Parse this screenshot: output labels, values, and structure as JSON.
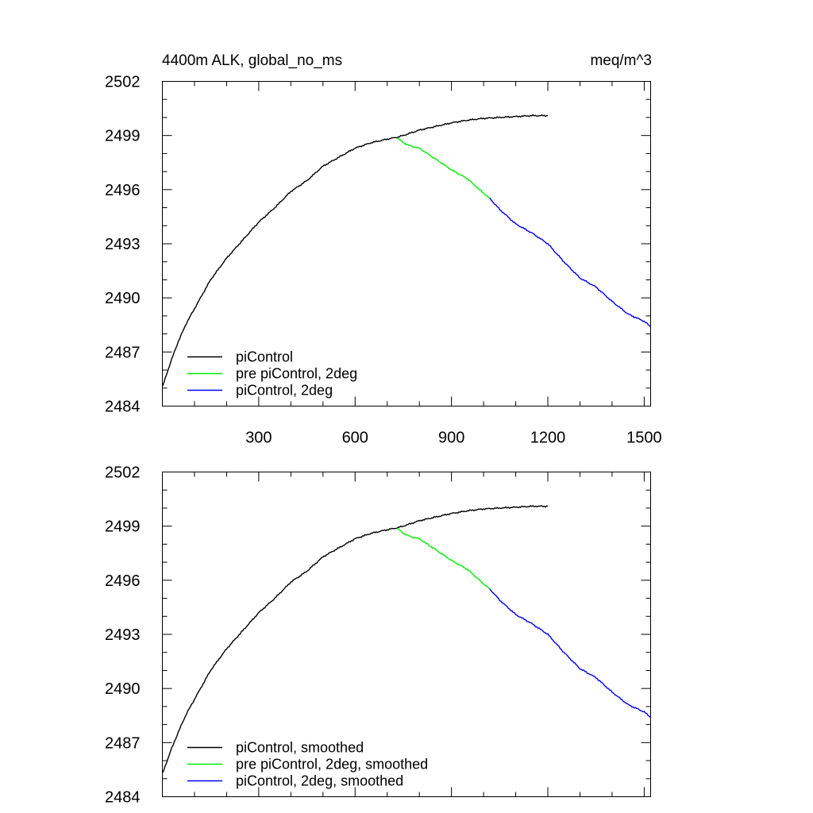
{
  "chart_data": [
    {
      "type": "line",
      "title_left": "4400m ALK, global_no_ms",
      "title_right": "meq/m^3",
      "xlim": [
        0,
        1520
      ],
      "ylim": [
        2484,
        2502
      ],
      "x_ticks": [
        300,
        600,
        900,
        1200,
        1500
      ],
      "x_tick_labels": [
        "300",
        "600",
        "900",
        "1200",
        "1500"
      ],
      "y_ticks": [
        2484,
        2487,
        2490,
        2493,
        2496,
        2499,
        2502
      ],
      "y_tick_labels": [
        "2484",
        "2487",
        "2490",
        "2493",
        "2496",
        "2499",
        "2502"
      ],
      "legend_position": "bottom-left",
      "series": [
        {
          "name": "piControl",
          "color": "#000000",
          "x": [
            1,
            25,
            50,
            75,
            100,
            150,
            200,
            250,
            300,
            350,
            400,
            450,
            500,
            550,
            600,
            650,
            700,
            730,
            750,
            800,
            850,
            900,
            950,
            1000,
            1050,
            1100,
            1150,
            1200
          ],
          "y": [
            2485.1,
            2486.4,
            2487.6,
            2488.6,
            2489.4,
            2491.0,
            2492.2,
            2493.2,
            2494.2,
            2495.0,
            2495.9,
            2496.5,
            2497.3,
            2497.8,
            2498.3,
            2498.6,
            2498.8,
            2498.9,
            2499.0,
            2499.3,
            2499.5,
            2499.7,
            2499.85,
            2499.95,
            2500.0,
            2500.05,
            2500.1,
            2500.1
          ]
        },
        {
          "name": "pre piControl, 2deg",
          "color": "#00ee00",
          "x": [
            730,
            750,
            775,
            800,
            825,
            850,
            900,
            950,
            1000,
            1020
          ],
          "y": [
            2498.9,
            2498.6,
            2498.4,
            2498.3,
            2498.0,
            2497.7,
            2497.1,
            2496.6,
            2495.8,
            2495.5
          ]
        },
        {
          "name": "piControl, 2deg",
          "color": "#0000ee",
          "x": [
            1020,
            1050,
            1100,
            1150,
            1200,
            1250,
            1300,
            1350,
            1400,
            1450,
            1500,
            1520
          ],
          "y": [
            2495.5,
            2494.9,
            2494.1,
            2493.6,
            2493.0,
            2492.0,
            2491.1,
            2490.6,
            2489.8,
            2489.1,
            2488.7,
            2488.4
          ]
        }
      ]
    },
    {
      "type": "line",
      "xlim": [
        0,
        1520
      ],
      "ylim": [
        2484,
        2502
      ],
      "x_ticks": [
        300,
        600,
        900,
        1200,
        1500
      ],
      "y_ticks": [
        2484,
        2487,
        2490,
        2493,
        2496,
        2499,
        2502
      ],
      "y_tick_labels": [
        "2484",
        "2487",
        "2490",
        "2493",
        "2496",
        "2499",
        "2502"
      ],
      "legend_position": "bottom-left",
      "series": [
        {
          "name": "piControl, smoothed",
          "color": "#000000",
          "x": [
            1,
            25,
            50,
            75,
            100,
            150,
            200,
            250,
            300,
            350,
            400,
            450,
            500,
            550,
            600,
            650,
            700,
            730,
            750,
            800,
            850,
            900,
            950,
            1000,
            1050,
            1100,
            1150,
            1200
          ],
          "y": [
            2485.3,
            2486.5,
            2487.6,
            2488.6,
            2489.4,
            2491.0,
            2492.2,
            2493.2,
            2494.2,
            2495.0,
            2495.9,
            2496.5,
            2497.3,
            2497.8,
            2498.3,
            2498.6,
            2498.8,
            2498.9,
            2499.0,
            2499.3,
            2499.5,
            2499.7,
            2499.85,
            2499.95,
            2500.0,
            2500.05,
            2500.1,
            2500.1
          ]
        },
        {
          "name": "pre piControl, 2deg, smoothed",
          "color": "#00ee00",
          "x": [
            730,
            750,
            775,
            800,
            825,
            850,
            900,
            950,
            1000,
            1020
          ],
          "y": [
            2498.9,
            2498.6,
            2498.4,
            2498.3,
            2498.0,
            2497.7,
            2497.1,
            2496.6,
            2495.8,
            2495.5
          ]
        },
        {
          "name": "piControl, 2deg, smoothed",
          "color": "#0000ee",
          "x": [
            1020,
            1050,
            1100,
            1150,
            1200,
            1250,
            1300,
            1350,
            1400,
            1450,
            1500,
            1520
          ],
          "y": [
            2495.5,
            2494.9,
            2494.1,
            2493.6,
            2493.0,
            2492.0,
            2491.1,
            2490.6,
            2489.8,
            2489.1,
            2488.7,
            2488.4
          ]
        }
      ]
    }
  ]
}
